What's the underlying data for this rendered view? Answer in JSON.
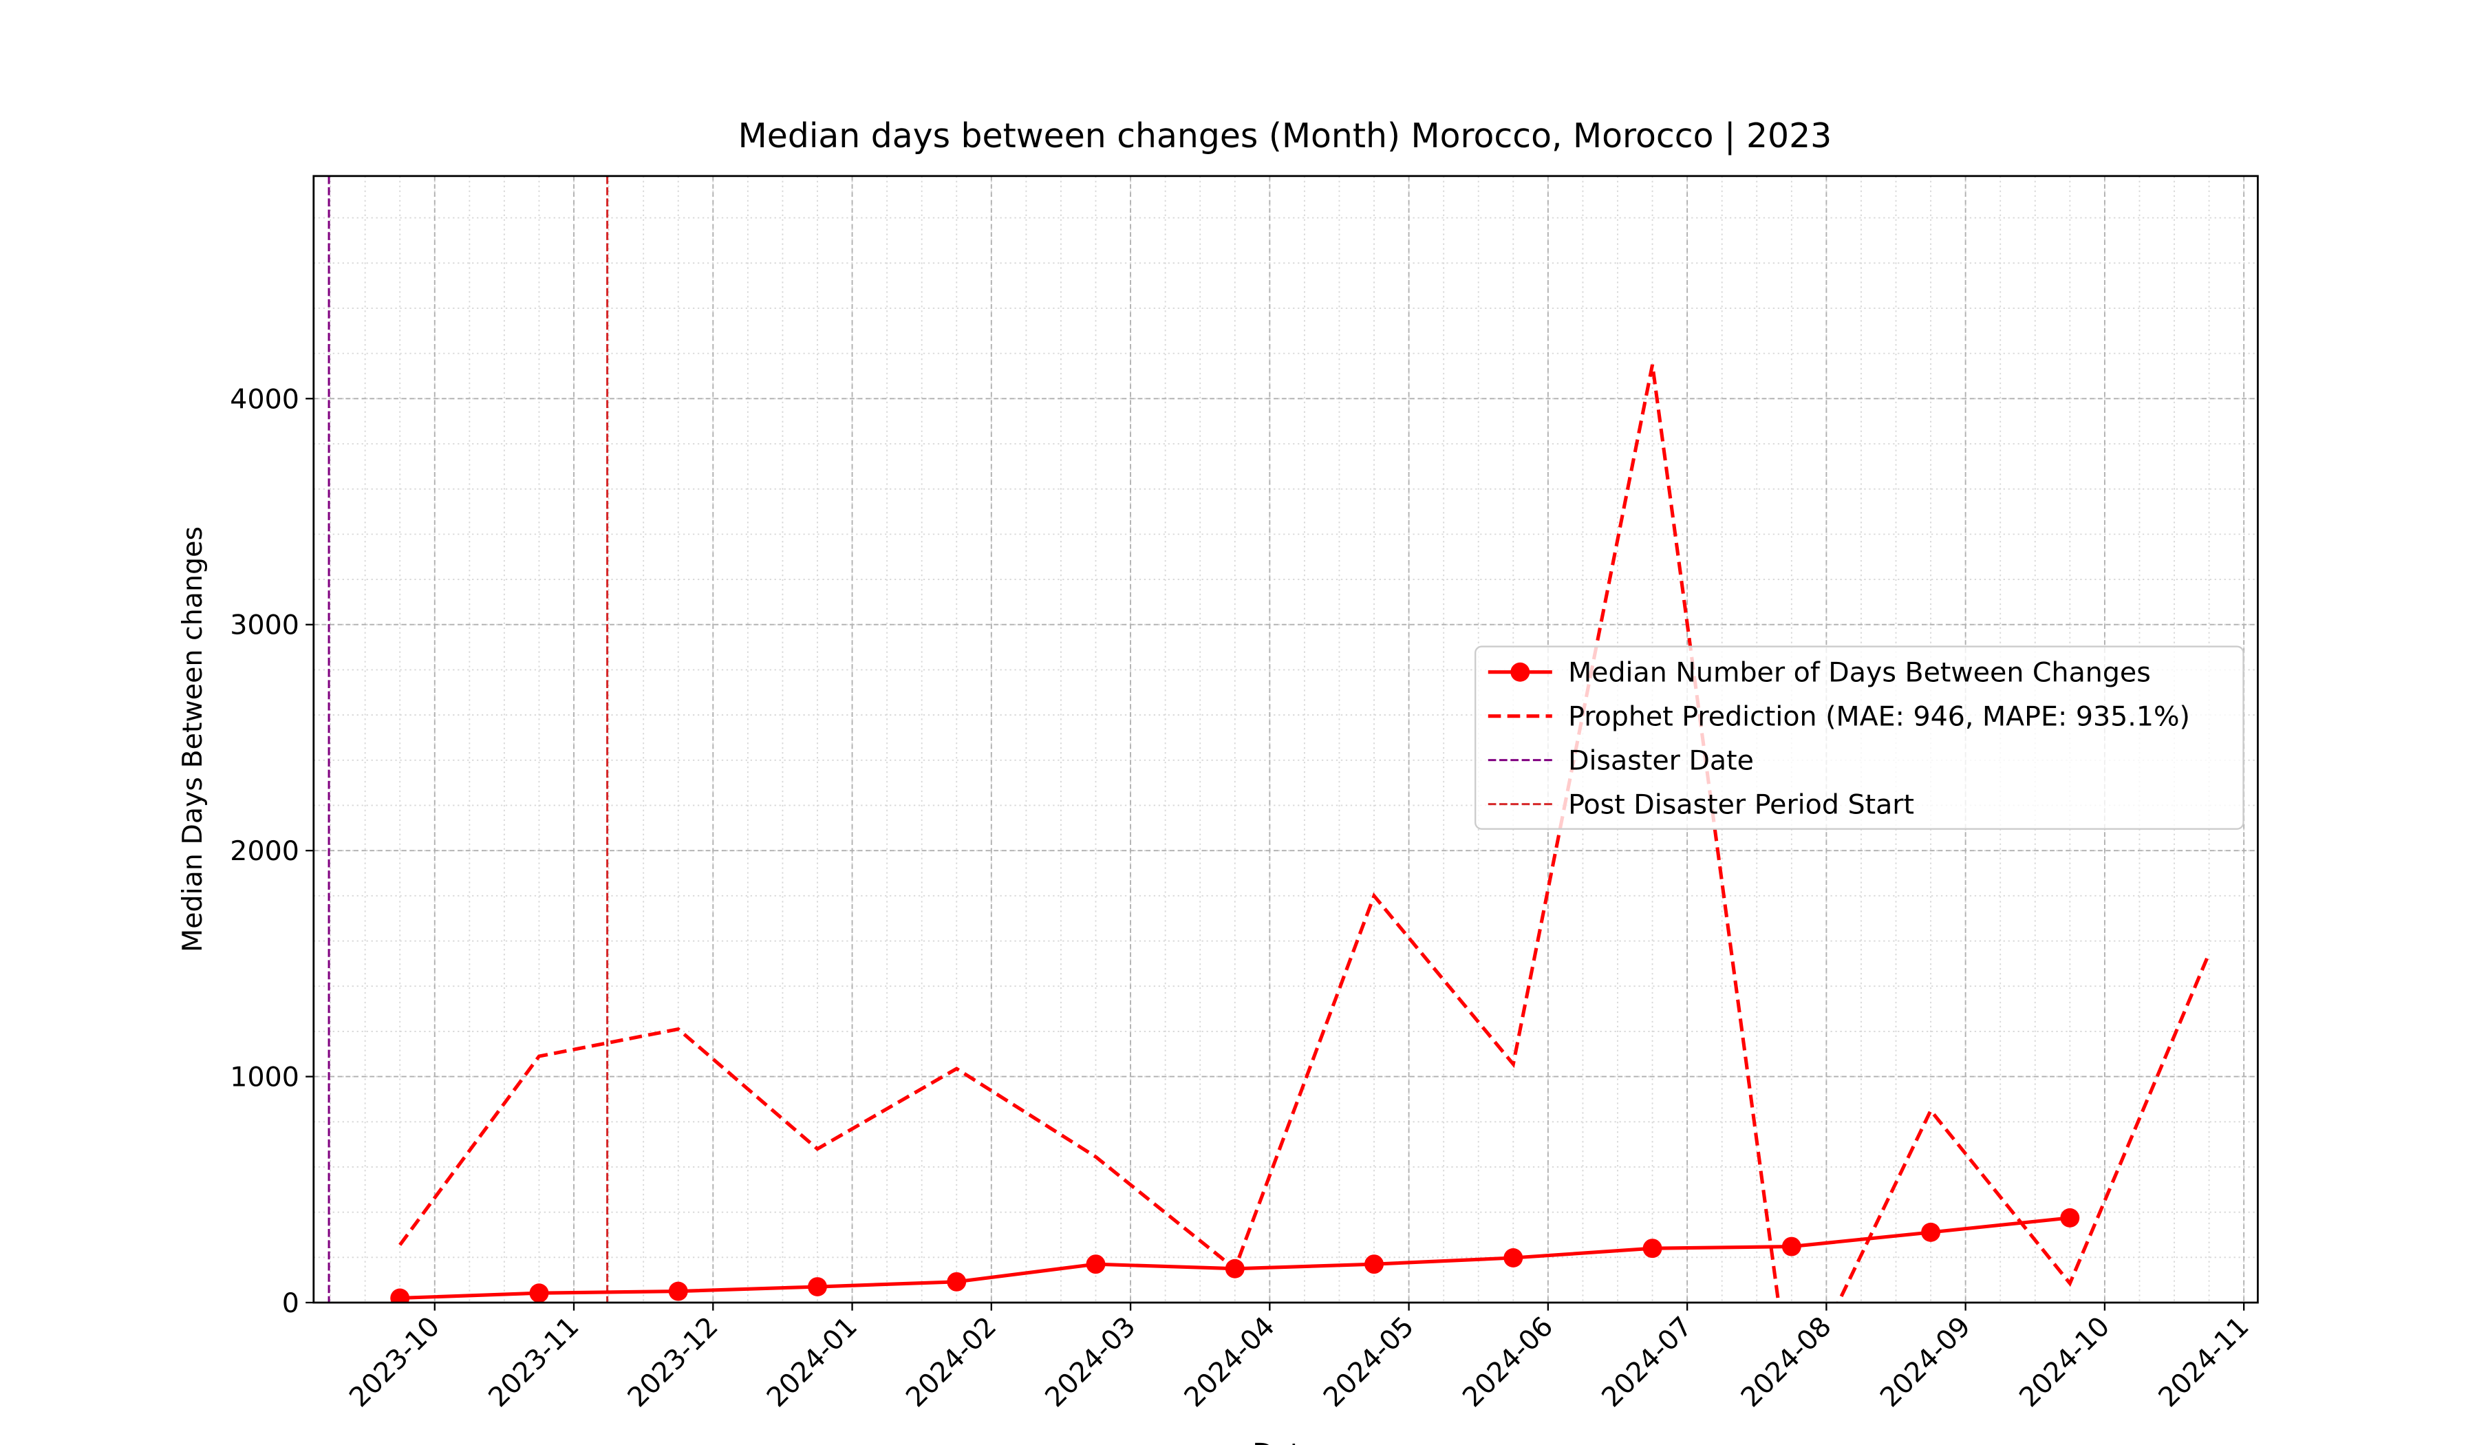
{
  "chart_data": {
    "type": "line",
    "title": "Median days between changes (Month) Morocco, Morocco | 2023",
    "x_label": "Date",
    "y_label": "Median Days Between changes",
    "x": [
      "2023-09",
      "2023-10",
      "2023-11",
      "2023-12",
      "2024-01",
      "2024-02",
      "2024-03",
      "2024-04",
      "2024-05",
      "2024-06",
      "2024-07",
      "2024-08",
      "2024-09",
      "2024-10"
    ],
    "series": [
      {
        "name": "Median Number of Days Between Changes",
        "color": "#ff0000",
        "style": "solid",
        "marker": "circle",
        "values": [
          20,
          42,
          50,
          70,
          92,
          170,
          150,
          170,
          198,
          240,
          248,
          311,
          375,
          null
        ]
      },
      {
        "name": "Prophet Prediction (MAE: 946, MAPE: 935.1%)",
        "color": "#ff0000",
        "style": "dashed",
        "values": [
          255,
          1090,
          1210,
          680,
          1035,
          645,
          150,
          1800,
          1055,
          4150,
          -430,
          850,
          85,
          1545
        ]
      }
    ],
    "vlines": [
      {
        "name": "Disaster Date",
        "x": "2023-09",
        "color": "#800080"
      },
      {
        "name": "Post Disaster Period Start",
        "x": "2023-11",
        "color": "#d62728"
      }
    ],
    "xlim": [
      "2023-09",
      "2024-11"
    ],
    "xticks": [
      "2023-10",
      "2023-11",
      "2023-12",
      "2024-01",
      "2024-02",
      "2024-03",
      "2024-04",
      "2024-05",
      "2024-06",
      "2024-07",
      "2024-08",
      "2024-09",
      "2024-10",
      "2024-11"
    ],
    "ylim": [
      0,
      4985
    ],
    "yticks": [
      0,
      1000,
      2000,
      3000,
      4000
    ],
    "grid": true,
    "legend": "center right"
  }
}
